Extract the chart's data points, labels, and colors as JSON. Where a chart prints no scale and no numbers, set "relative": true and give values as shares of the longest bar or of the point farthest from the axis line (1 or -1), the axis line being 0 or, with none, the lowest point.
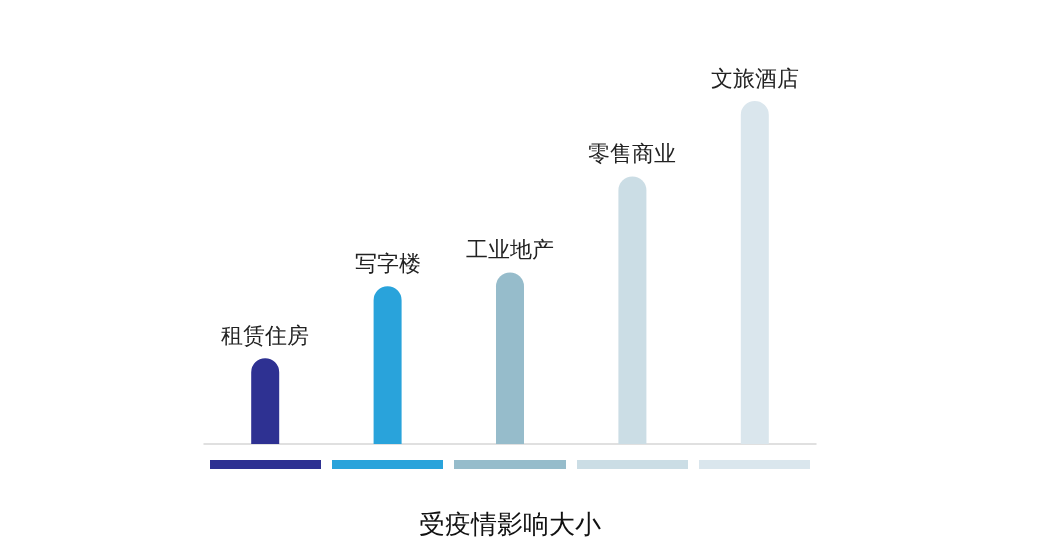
{
  "chart_data": {
    "type": "bar",
    "xlabel": "受疫情影响大小",
    "categories": [
      "租赁住房",
      "写字楼",
      "工业地产",
      "零售商业",
      "文旅酒店"
    ],
    "values": [
      0.25,
      0.46,
      0.5,
      0.78,
      1
    ],
    "colors": [
      "#2e3192",
      "#29a3db",
      "#96bccb",
      "#cbdde5",
      "#dae6ed"
    ],
    "relative": true,
    "tick_labels": false
  }
}
